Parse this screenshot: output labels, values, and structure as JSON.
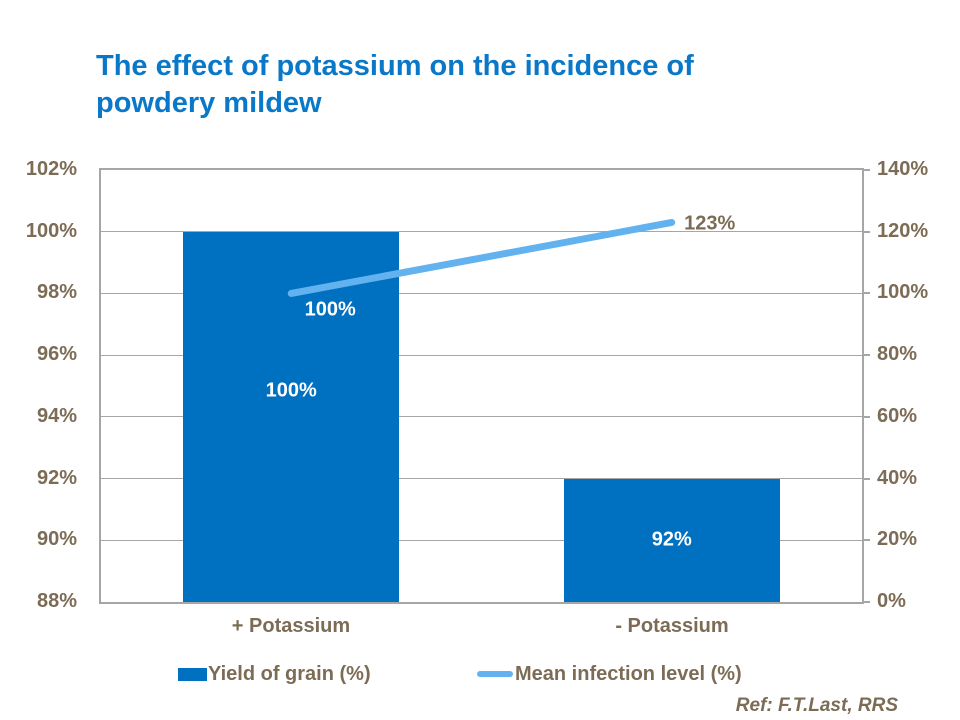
{
  "title": "The effect of potassium on the incidence of powdery mildew",
  "reference": "Ref: F.T.Last, RRS",
  "colors": {
    "title": "#0A78C8",
    "bar": "#0070C0",
    "line": "#63B2F0",
    "text": "#7C6C56",
    "grid": "#A6A6A6",
    "bar_label": "#FFFFFF"
  },
  "chart_data": {
    "type": "bar",
    "subtype": "bar-line combo, dual axis",
    "title": "The effect of potassium on the incidence of powdery mildew",
    "categories": [
      "+ Potassium",
      "- Potassium"
    ],
    "series": [
      {
        "name": "Yield of grain (%)",
        "type": "bar",
        "axis": "left",
        "values": [
          100,
          92
        ],
        "labels": [
          "100%",
          "92%"
        ],
        "label_dy": [
          -26,
          0
        ]
      },
      {
        "name": "Mean infection level (%)",
        "type": "line",
        "axis": "right",
        "values": [
          100,
          123
        ],
        "labels": [
          "100%",
          "123%"
        ],
        "label_offsets": [
          [
            39,
            17
          ],
          [
            38,
            2
          ]
        ],
        "label_colors": [
          "#FFFFFF",
          "#7C6C56"
        ]
      }
    ],
    "left_axis": {
      "min": 88,
      "max": 102,
      "step": 2,
      "ticks": [
        "102%",
        "100%",
        "98%",
        "96%",
        "94%",
        "92%",
        "90%",
        "88%"
      ]
    },
    "right_axis": {
      "min": 0,
      "max": 140,
      "step": 20,
      "ticks": [
        "140%",
        "120%",
        "100%",
        "80%",
        "60%",
        "40%",
        "20%",
        "0%"
      ]
    },
    "grid": "horizontal gridlines on",
    "legend_position": "bottom"
  }
}
